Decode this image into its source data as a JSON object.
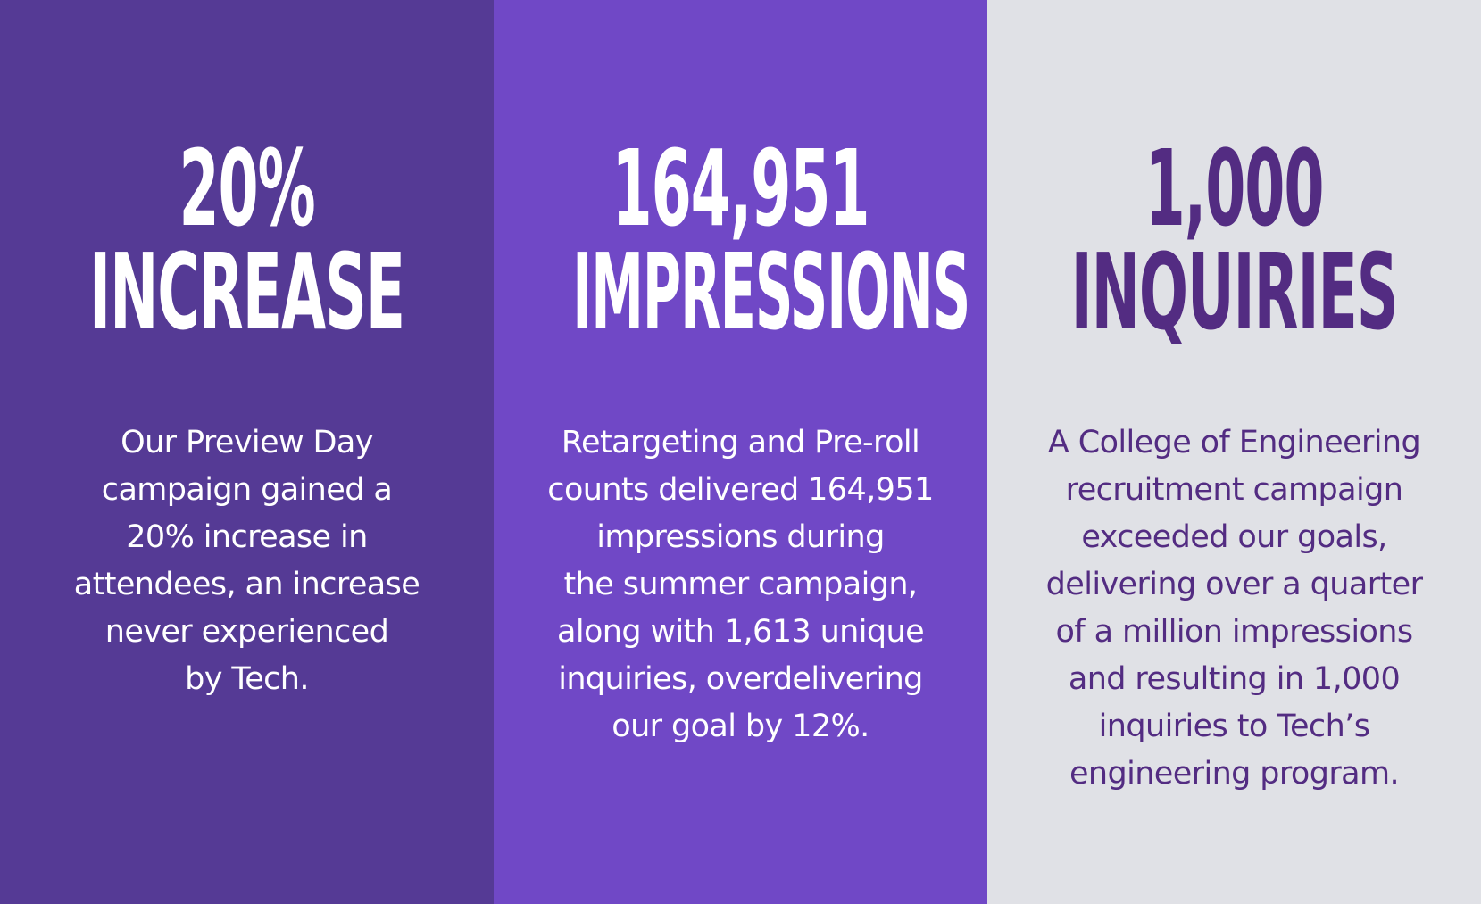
{
  "colors": {
    "panel_1_bg": "#553a95",
    "panel_2_bg": "#7048c6",
    "panel_3_bg": "#e0e1e6",
    "light_text": "#ffffff",
    "dark_text": "#532c82"
  },
  "stats": [
    {
      "number": "20%",
      "label": "INCREASE",
      "description": "Our Preview Day\ncampaign gained a\n20% increase in\nattendees, an increase\nnever experienced\nby Tech."
    },
    {
      "number": "164,951",
      "label": "IMPRESSIONS",
      "description": "Retargeting and Pre-roll\ncounts delivered 164,951\nimpressions during\nthe summer campaign,\nalong with 1,613 unique\ninquiries, overdelivering\nour goal by 12%."
    },
    {
      "number": "1,000",
      "label": "INQUIRIES",
      "description": "A College of Engineering\nrecruitment campaign\nexceeded our goals,\ndelivering over a quarter\nof a million impressions\nand resulting in 1,000\ninquiries to Tech’s\nengineering program."
    }
  ]
}
